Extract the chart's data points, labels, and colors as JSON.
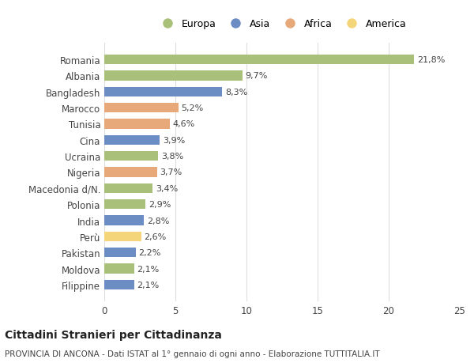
{
  "countries": [
    "Romania",
    "Albania",
    "Bangladesh",
    "Marocco",
    "Tunisia",
    "Cina",
    "Ucraina",
    "Nigeria",
    "Macedonia d/N.",
    "Polonia",
    "India",
    "Perù",
    "Pakistan",
    "Moldova",
    "Filippine"
  ],
  "values": [
    21.8,
    9.7,
    8.3,
    5.2,
    4.6,
    3.9,
    3.8,
    3.7,
    3.4,
    2.9,
    2.8,
    2.6,
    2.2,
    2.1,
    2.1
  ],
  "labels": [
    "21,8%",
    "9,7%",
    "8,3%",
    "5,2%",
    "4,6%",
    "3,9%",
    "3,8%",
    "3,7%",
    "3,4%",
    "2,9%",
    "2,8%",
    "2,6%",
    "2,2%",
    "2,1%",
    "2,1%"
  ],
  "categories": [
    "Europa",
    "Europa",
    "Asia",
    "Africa",
    "Africa",
    "Asia",
    "Europa",
    "Africa",
    "Europa",
    "Europa",
    "Asia",
    "America",
    "Asia",
    "Europa",
    "Asia"
  ],
  "category_colors": {
    "Europa": "#a8c07a",
    "Asia": "#6b8dc4",
    "Africa": "#e8a97a",
    "America": "#f5d57a"
  },
  "legend_order": [
    "Europa",
    "Asia",
    "Africa",
    "America"
  ],
  "title": "Cittadini Stranieri per Cittadinanza",
  "subtitle": "PROVINCIA DI ANCONA - Dati ISTAT al 1° gennaio di ogni anno - Elaborazione TUTTITALIA.IT",
  "xlim": [
    0,
    25
  ],
  "xticks": [
    0,
    5,
    10,
    15,
    20,
    25
  ],
  "bg_color": "#ffffff",
  "grid_color": "#dddddd"
}
